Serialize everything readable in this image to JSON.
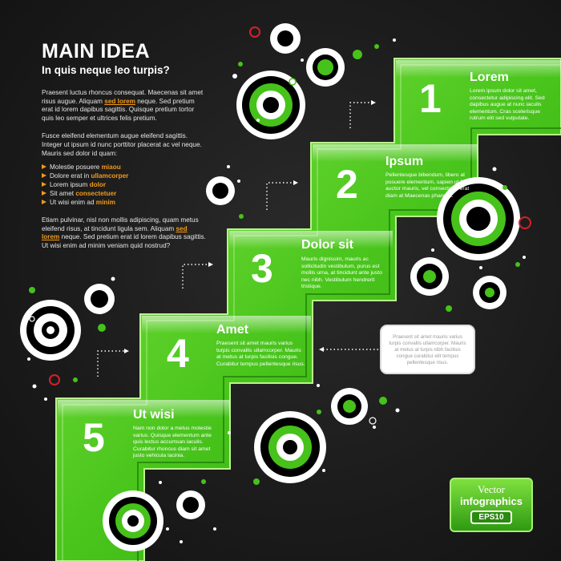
{
  "intro": {
    "title": "MAIN IDEA",
    "subtitle": "In quis neque leo turpis?",
    "p1_before": "Praesent luctus rhoncus consequat. Maecenas sit amet risus augue. Aliquam ",
    "p1_link": "sed lorem",
    "p1_after": " neque. Sed pretium erat id lorem dapibus sagittis. Quisque pretium tortor quis leo semper et ultrices felis pretium.",
    "p2": "Fusce eleifend elementum augue eleifend sagittis. Integer ut ipsum id nunc porttitor placerat ac vel neque. Mauris sed dolor id quam:",
    "bullets": [
      {
        "text": "Molestie posuere ",
        "highlight": "miaou"
      },
      {
        "text": "Dolore erat in ",
        "highlight": "ullamcorper"
      },
      {
        "text": "Lorem ipsum ",
        "highlight": "dolor"
      },
      {
        "text": "Sit amet ",
        "highlight": "consectetuer"
      },
      {
        "text": "Ut wisi enim ad ",
        "highlight": "minim"
      }
    ],
    "p3_before": "Etiam pulvinar, nisl non mollis adipiscing, quam metus eleifend risus, at tincidunt ligula sem. Aliquam ",
    "p3_link": "sed lorem",
    "p3_after": " neque. Sed pretium erat id lorem dapibus sagittis. Ut wisi enim ad minim veniam quid nostrud?"
  },
  "steps": [
    {
      "number": "1",
      "title": "Lorem",
      "text": "Lorem ipsum dolor sit amet, consectetur adipiscing elit. Sed dapibus augue at nunc iaculis elementum. Cras scelerisque rutrum elit sed vulputate."
    },
    {
      "number": "2",
      "title": "Ipsum",
      "text": "Pellentesque bibendum, libero at posuere elementum, sapien ut felis auctor mauris, vel consectetur erat diam at Maecenas pharetra."
    },
    {
      "number": "3",
      "title": "Dolor sit",
      "text": "Mauris dignissim, mauris ac sollicitudin vestibulum, purus est mollis urna, at tincidunt ante justo nec nibh. Vestibulum hendrerit tristique."
    },
    {
      "number": "4",
      "title": "Amet",
      "text": "Praesent sit amet mauris varius turpis convallis ullamcorper. Mauris at metus at turpis facilisis congue. Curabitur tempus pellentesque risus."
    },
    {
      "number": "5",
      "title": "Ut wisi",
      "text": "Nam non dolor a metus molestie varius. Quisque elementum ante quis lectus accumsan iaculis. Curabitur rhoncus diam sit amet justo vehicula lacinia."
    }
  ],
  "callout": {
    "text": "Praesent sit amet mauris varius turpis convallis ullamcorper. Mauris at metus at turpis nibh facilisis congue curabitur elit tempus pellentesque risus."
  },
  "badge": {
    "line1": "Vector",
    "line2": "infographics",
    "line3": "EPS10"
  },
  "colors": {
    "background": "#1c1c1c",
    "green": "#46c21a",
    "green_light": "#7fe03f",
    "accent_orange": "#f39a1a",
    "ring_red": "#d6202a",
    "white": "#ffffff",
    "black": "#000000"
  }
}
